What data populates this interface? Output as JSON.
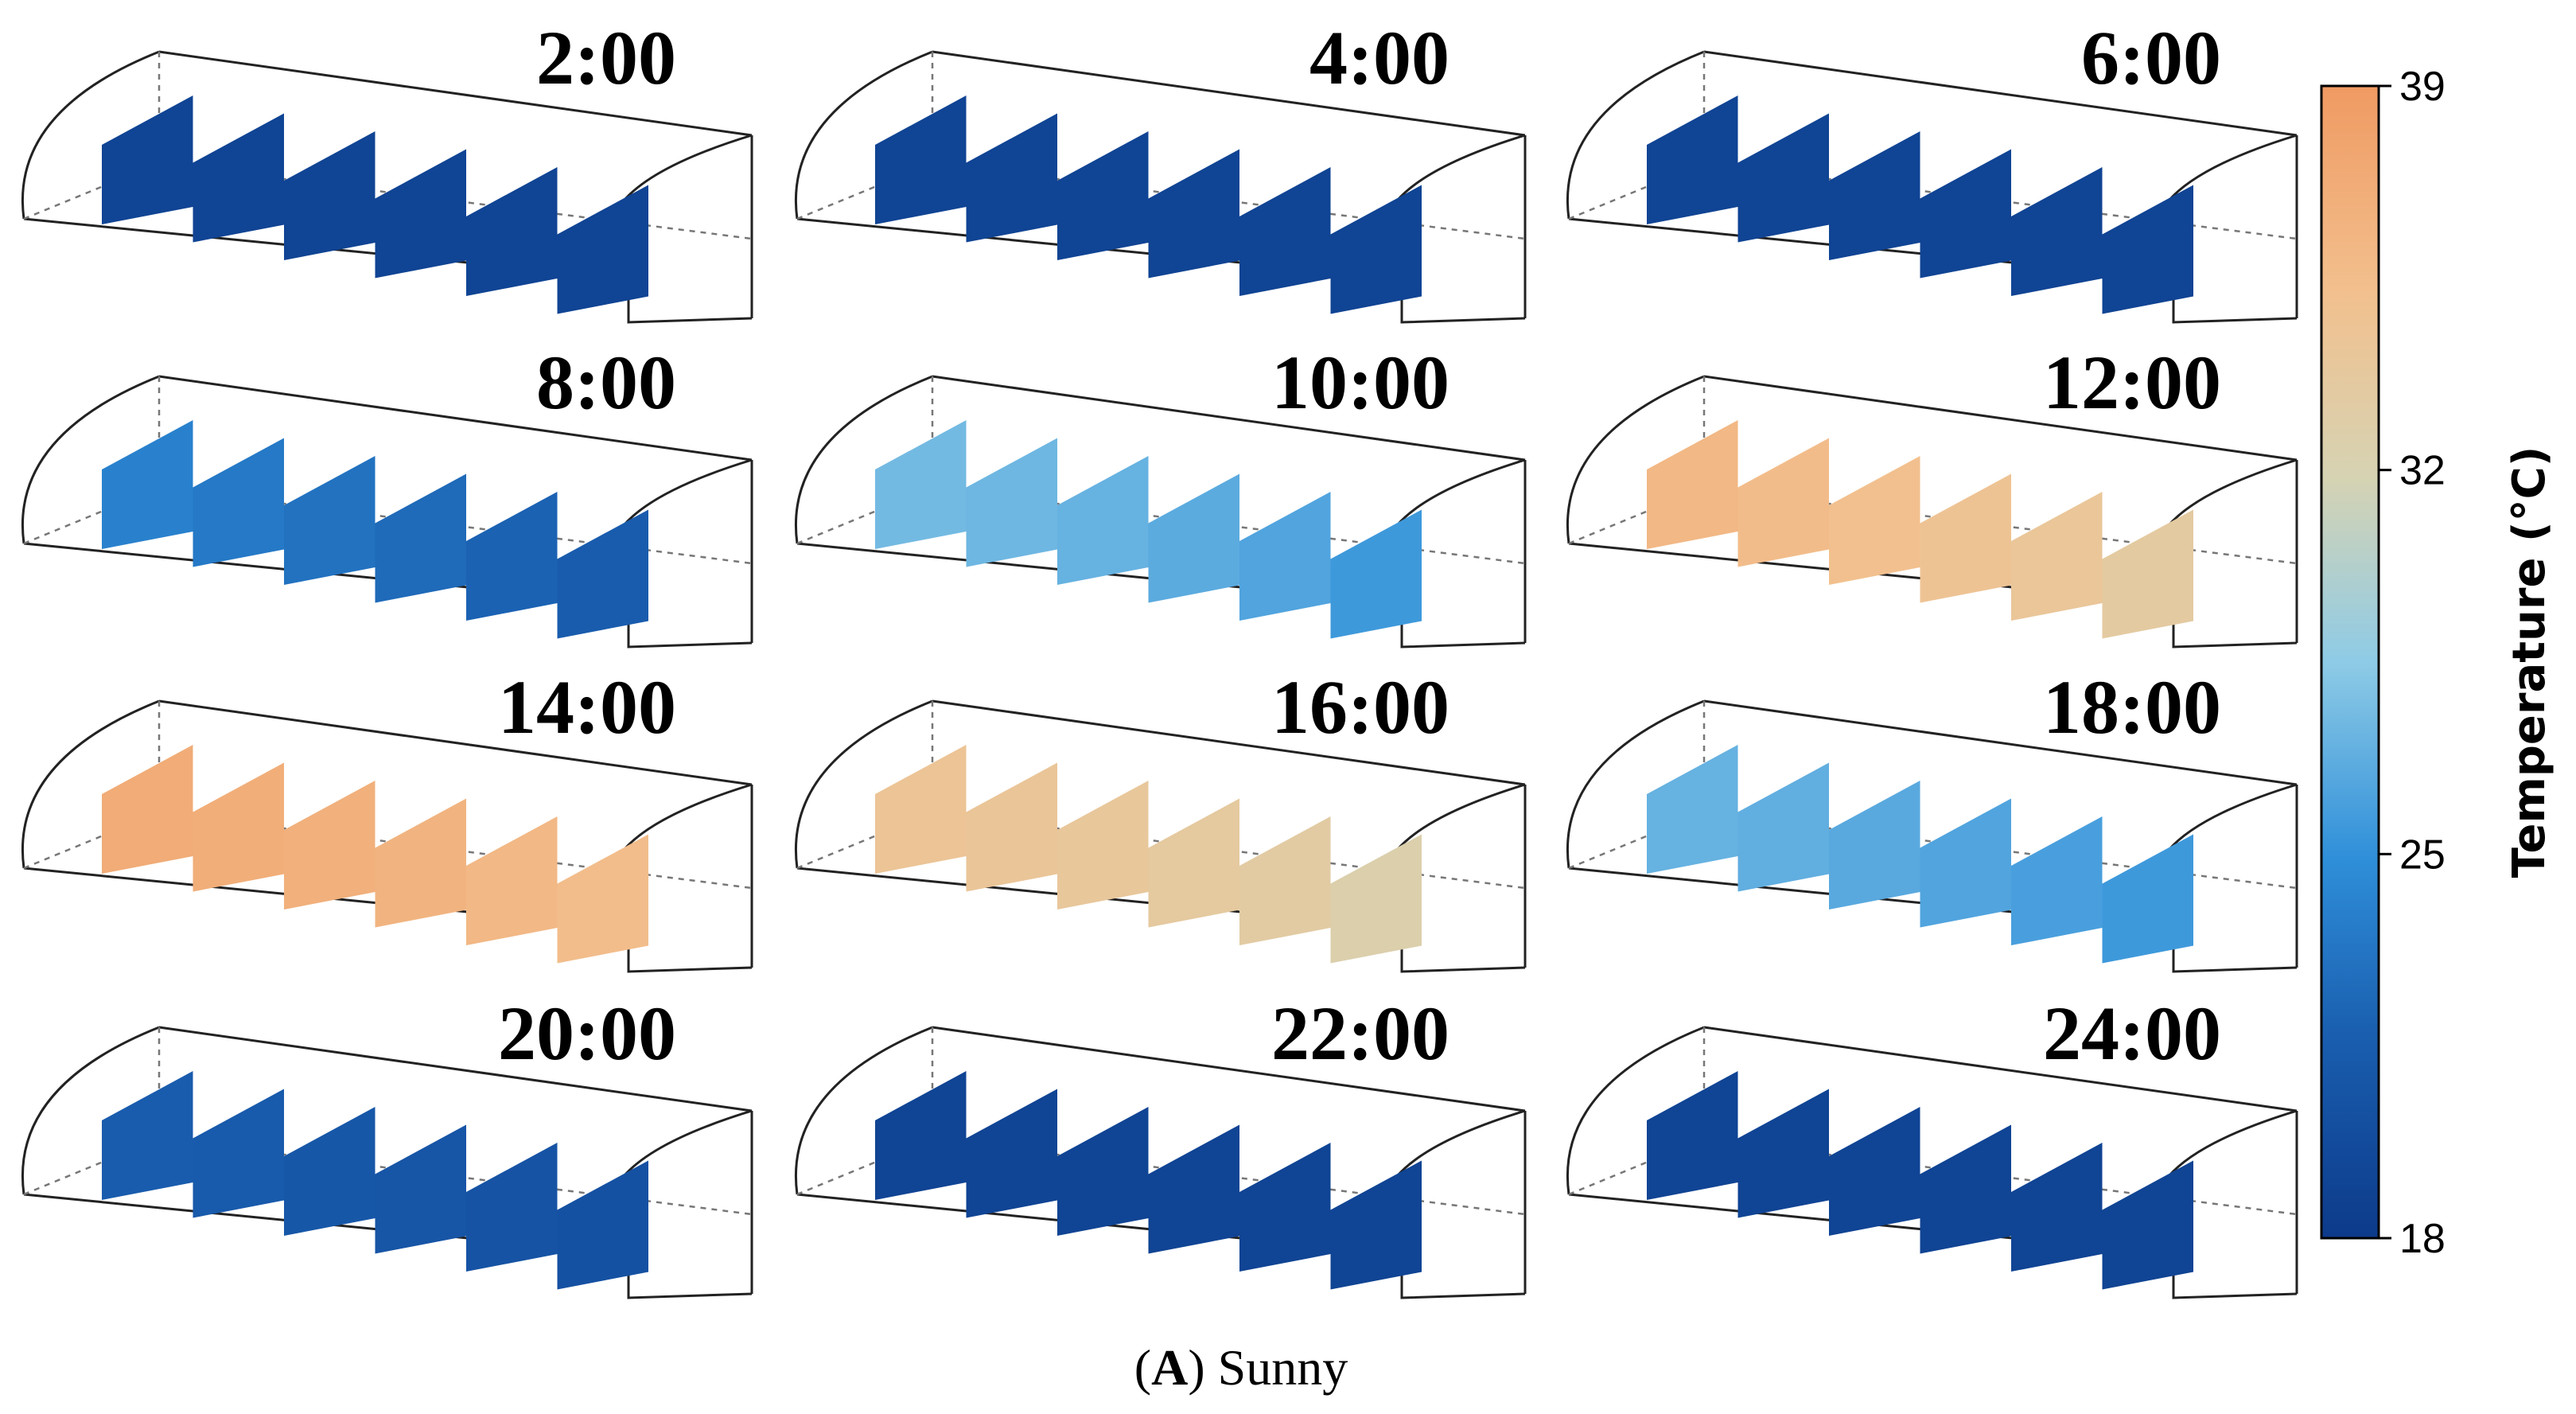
{
  "chart_data": {
    "type": "heatmap",
    "caption_letter": "A",
    "caption_text": ") Sunny",
    "panels": [
      {
        "time": "2:00",
        "panel_temps": [
          19.0,
          19.0,
          19.0,
          19.0,
          19.0,
          19.0
        ]
      },
      {
        "time": "4:00",
        "panel_temps": [
          19.0,
          19.0,
          19.0,
          19.0,
          19.0,
          19.0
        ]
      },
      {
        "time": "6:00",
        "panel_temps": [
          19.0,
          19.0,
          19.0,
          19.0,
          19.0,
          19.0
        ]
      },
      {
        "time": "8:00",
        "panel_temps": [
          24.0,
          23.5,
          23.0,
          22.5,
          22.0,
          21.5
        ]
      },
      {
        "time": "10:00",
        "panel_temps": [
          27.5,
          27.3,
          27.0,
          26.6,
          26.2,
          25.5
        ]
      },
      {
        "time": "12:00",
        "panel_temps": [
          36.0,
          35.6,
          35.2,
          34.7,
          34.2,
          33.5
        ]
      },
      {
        "time": "14:00",
        "panel_temps": [
          37.2,
          37.0,
          36.8,
          36.4,
          36.0,
          35.5
        ]
      },
      {
        "time": "16:00",
        "panel_temps": [
          34.5,
          34.3,
          34.0,
          33.7,
          33.3,
          32.5
        ]
      },
      {
        "time": "18:00",
        "panel_temps": [
          27.0,
          26.8,
          26.5,
          26.2,
          25.9,
          25.5
        ]
      },
      {
        "time": "20:00",
        "panel_temps": [
          21.5,
          21.3,
          21.0,
          20.8,
          20.6,
          20.4
        ]
      },
      {
        "time": "22:00",
        "panel_temps": [
          19.0,
          19.0,
          19.0,
          19.0,
          19.0,
          19.0
        ]
      },
      {
        "time": "24:00",
        "panel_temps": [
          19.0,
          19.0,
          19.0,
          19.0,
          19.0,
          19.0
        ]
      }
    ],
    "colorbar": {
      "label": "Temperature (°C)",
      "min": 18,
      "max": 39,
      "ticks": [
        "39",
        "32",
        "25",
        "18"
      ],
      "tick_values": [
        39,
        32,
        25,
        18
      ],
      "colors": [
        "#0d3a8a",
        "#1877c8",
        "#2f8fd9",
        "#8ecbe6",
        "#f2d3a6",
        "#f0c08e",
        "#f09a62"
      ]
    }
  }
}
